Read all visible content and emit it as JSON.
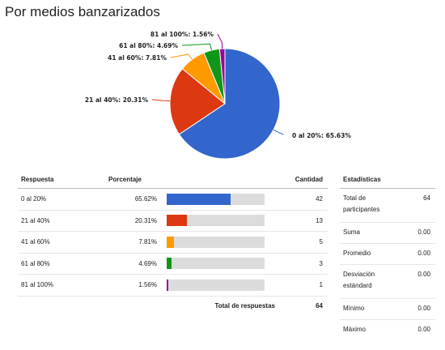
{
  "title": "Por medios banzarizados",
  "chart_data": {
    "type": "pie",
    "title": "Por medios banzarizados",
    "slices": [
      {
        "label": "0 al 20%",
        "pie_label": "0 al 20%: 65.63%",
        "percent": 65.63,
        "color": "#3366cc"
      },
      {
        "label": "21 al 40%",
        "pie_label": "21 al 40%: 20.31%",
        "percent": 20.31,
        "color": "#dc3912"
      },
      {
        "label": "41 al 60%",
        "pie_label": "41 al 60%: 7.81%",
        "percent": 7.81,
        "color": "#ff9900"
      },
      {
        "label": "61 al 80%",
        "pie_label": "61 al 80%: 4.69%",
        "percent": 4.69,
        "color": "#109618"
      },
      {
        "label": "81 al 100%",
        "pie_label": "81 al 100%: 1.56%",
        "percent": 1.56,
        "color": "#990099"
      }
    ]
  },
  "table": {
    "headers": {
      "respuesta": "Respuesta",
      "porcentaje": "Porcentaje",
      "cantidad": "Cantidad"
    },
    "rows": [
      {
        "respuesta": "0 al 20%",
        "porcentaje": "65.62%",
        "cantidad": "42",
        "fraction": 0.6562,
        "color": "#3366cc"
      },
      {
        "respuesta": "21 al 40%",
        "porcentaje": "20.31%",
        "cantidad": "13",
        "fraction": 0.2031,
        "color": "#dc3912"
      },
      {
        "respuesta": "41 al 60%",
        "porcentaje": "7.81%",
        "cantidad": "5",
        "fraction": 0.0781,
        "color": "#ff9900"
      },
      {
        "respuesta": "61 al 80%",
        "porcentaje": "4.69%",
        "cantidad": "3",
        "fraction": 0.0469,
        "color": "#109618"
      },
      {
        "respuesta": "81 al 100%",
        "porcentaje": "1.56%",
        "cantidad": "1",
        "fraction": 0.0156,
        "color": "#990099"
      }
    ],
    "total_label": "Total de respuestas",
    "total_value": "64"
  },
  "stats": {
    "header": "Estadísticas",
    "rows": [
      {
        "label": "Total de participantes",
        "value": "64"
      },
      {
        "label": "Suma",
        "value": "0.00"
      },
      {
        "label": "Promedio",
        "value": "0.00"
      },
      {
        "label": "Desviación estándard",
        "value": "0.00"
      },
      {
        "label": "Mínimo",
        "value": "0.00"
      },
      {
        "label": "Máximo",
        "value": "0.00"
      }
    ]
  }
}
